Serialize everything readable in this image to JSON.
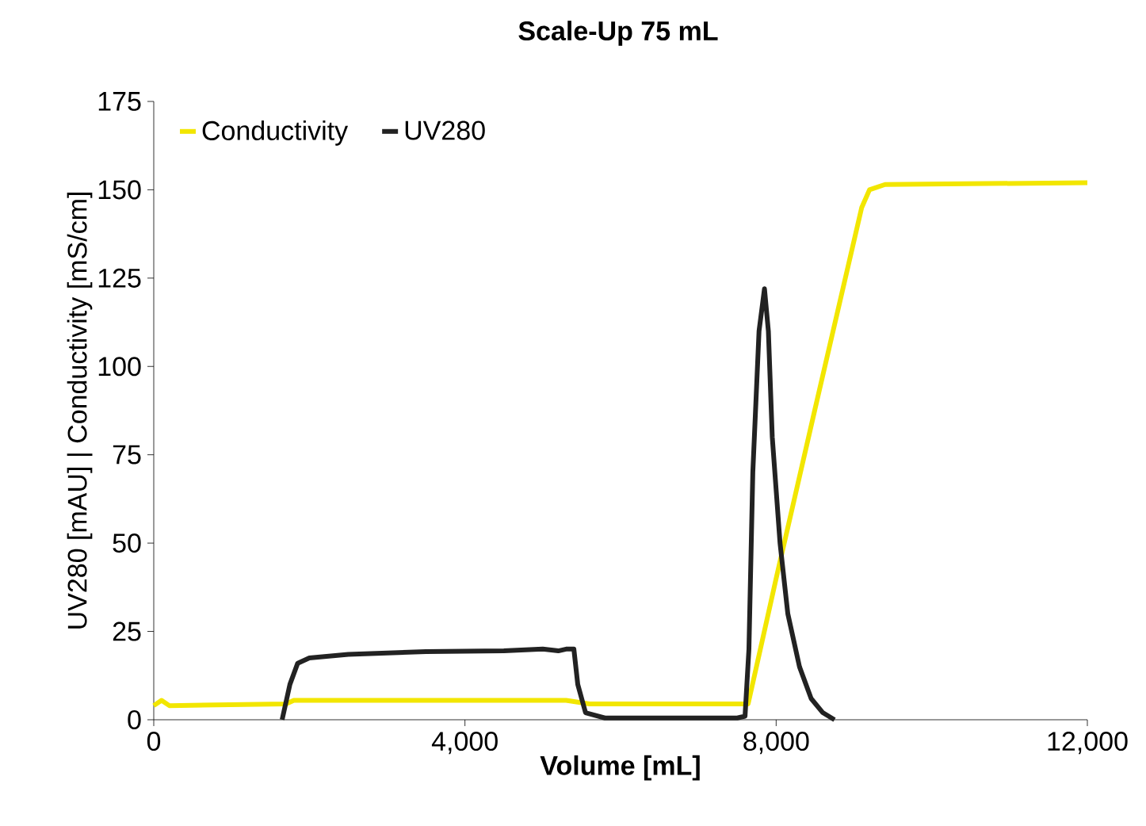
{
  "chart_data": {
    "type": "line",
    "title": "Scale-Up 75 mL",
    "xlabel": "Volume [mL]",
    "ylabel": "UV280 [mAU] | Conductivity [mS/cm]",
    "xlim": [
      0,
      12000
    ],
    "ylim": [
      0,
      175
    ],
    "xticks": [
      0,
      {
        "value": 4000,
        "label": "4,000"
      },
      {
        "value": 8000,
        "label": "8,000"
      },
      {
        "value": 12000,
        "label": "12,000"
      }
    ],
    "yticks": [
      0,
      25,
      50,
      75,
      100,
      125,
      150,
      175
    ],
    "legend": "top left",
    "grid": false,
    "marker": "none",
    "line_style": "solid",
    "series": [
      {
        "name": "Conductivity",
        "color": "#f2e600",
        "x": [
          0,
          100,
          200,
          1700,
          1800,
          5300,
          5600,
          7640,
          8000,
          8500,
          9100,
          9200,
          9400,
          12000
        ],
        "values": [
          4,
          5.5,
          4,
          4.5,
          5.5,
          5.5,
          4.5,
          4.5,
          40,
          88,
          145,
          150,
          151.5,
          152
        ]
      },
      {
        "name": "UV280",
        "color": "#222222",
        "x": [
          1650,
          1750,
          1850,
          2000,
          2500,
          3500,
          4500,
          5000,
          5200,
          5300,
          5400,
          5450,
          5550,
          5800,
          7500,
          7600,
          7650,
          7700,
          7780,
          7850,
          7900,
          7950,
          8050,
          8150,
          8300,
          8450,
          8600,
          8750
        ],
        "values": [
          0,
          10,
          16,
          17.5,
          18.5,
          19.3,
          19.5,
          20,
          19.5,
          20,
          20,
          10,
          2,
          0.5,
          0.5,
          1,
          20,
          70,
          110,
          122,
          110,
          80,
          50,
          30,
          15,
          6,
          2,
          0
        ]
      }
    ]
  }
}
